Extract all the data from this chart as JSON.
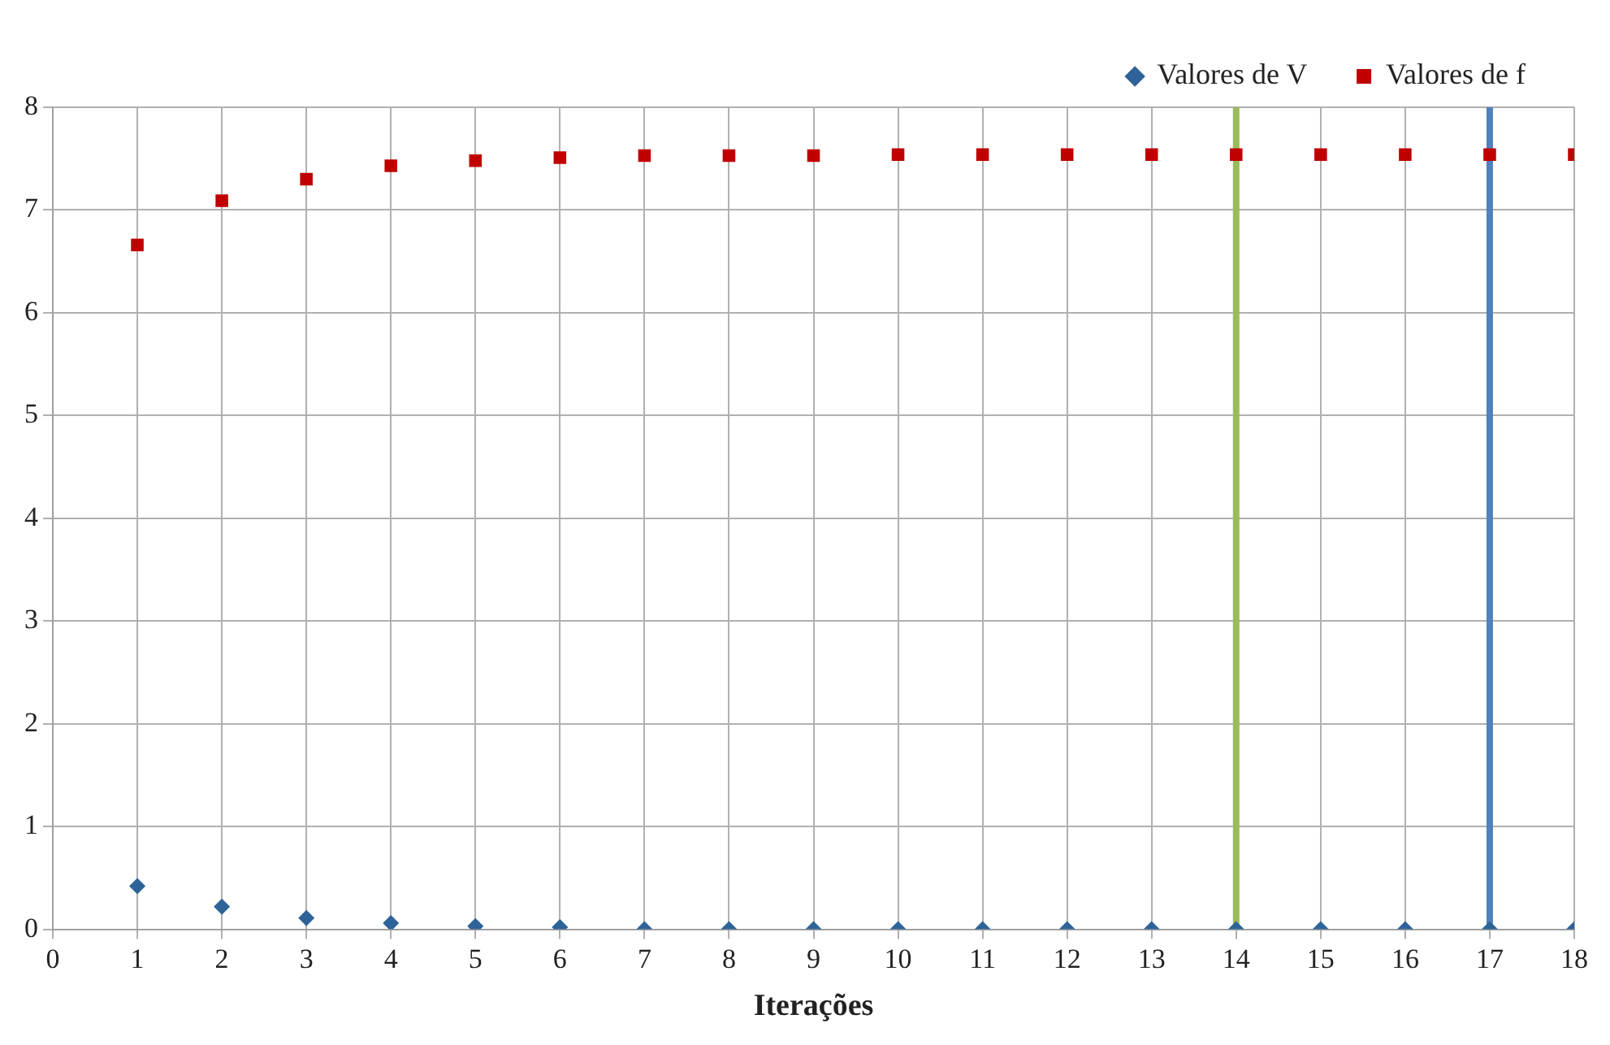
{
  "chart_data": {
    "type": "scatter",
    "xlabel": "Iterações",
    "x": [
      1,
      2,
      3,
      4,
      5,
      6,
      7,
      8,
      9,
      10,
      11,
      12,
      13,
      14,
      15,
      16,
      17,
      18
    ],
    "series": [
      {
        "name": "Valores de V",
        "color": "#2e6399",
        "marker": "diamond",
        "values": [
          0.42,
          0.22,
          0.11,
          0.06,
          0.03,
          0.02,
          0,
          0,
          0,
          0,
          0,
          0,
          0,
          0,
          0,
          0,
          0,
          0
        ]
      },
      {
        "name": "Valores de f",
        "color": "#c00000",
        "marker": "square",
        "values": [
          6.66,
          7.09,
          7.3,
          7.43,
          7.48,
          7.51,
          7.53,
          7.53,
          7.53,
          7.54,
          7.54,
          7.54,
          7.54,
          7.54,
          7.54,
          7.54,
          7.54,
          7.54
        ]
      }
    ],
    "ref_lines": [
      {
        "axis": "x",
        "value": 14,
        "color": "#9bbb59"
      },
      {
        "axis": "x",
        "value": 17,
        "color": "#4f81bd"
      }
    ],
    "xlim": [
      0,
      18
    ],
    "xticks": [
      0,
      1,
      2,
      3,
      4,
      5,
      6,
      7,
      8,
      9,
      10,
      11,
      12,
      13,
      14,
      15,
      16,
      17,
      18
    ],
    "ylim": [
      0,
      8
    ],
    "yticks": [
      0,
      1,
      2,
      3,
      4,
      5,
      6,
      7,
      8
    ],
    "grid": true,
    "legend": "top right"
  }
}
